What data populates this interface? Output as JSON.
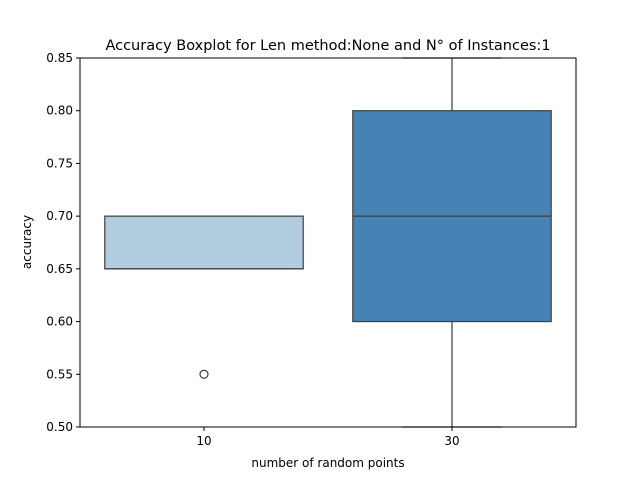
{
  "chart_data": {
    "type": "boxplot",
    "title": "Accuracy Boxplot for Len method:None and N° of Instances:1",
    "xlabel": "number of random points",
    "ylabel": "accuracy",
    "categories": [
      "10",
      "30"
    ],
    "ylim": [
      0.5,
      0.85
    ],
    "yticks": [
      0.5,
      0.55,
      0.6,
      0.65,
      0.7,
      0.75,
      0.8,
      0.85
    ],
    "ytick_labels": [
      "0.50",
      "0.55",
      "0.60",
      "0.65",
      "0.70",
      "0.75",
      "0.80",
      "0.85"
    ],
    "grid": false,
    "boxes": [
      {
        "category": "10",
        "whisker_low": 0.65,
        "q1": 0.65,
        "median": 0.65,
        "q3": 0.7,
        "whisker_high": 0.7,
        "outliers": [
          0.55
        ],
        "color": "#b3cde0"
      },
      {
        "category": "30",
        "whisker_low": 0.5,
        "q1": 0.6,
        "median": 0.7,
        "q3": 0.8,
        "whisker_high": 0.85,
        "outliers": [],
        "color": "#4682b4"
      }
    ]
  }
}
